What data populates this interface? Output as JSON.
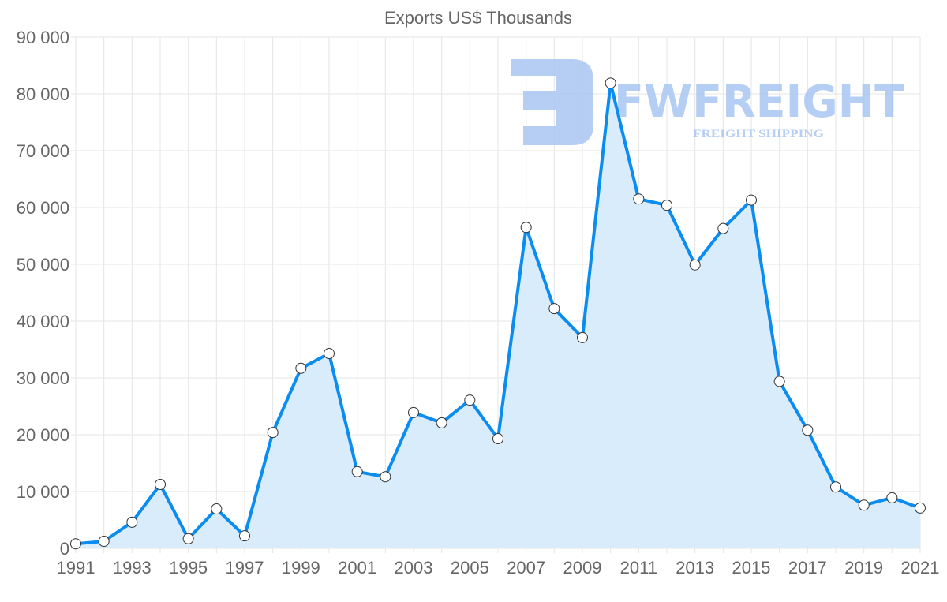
{
  "chart_data": {
    "type": "area",
    "title": "Exports US$ Thousands",
    "xlabel": "",
    "ylabel": "",
    "ylim": [
      0,
      90000
    ],
    "yticks": [
      0,
      10000,
      20000,
      30000,
      40000,
      50000,
      60000,
      70000,
      80000,
      90000
    ],
    "ytick_labels": [
      "0",
      "10 000",
      "20 000",
      "30 000",
      "40 000",
      "50 000",
      "60 000",
      "70 000",
      "80 000",
      "90 000"
    ],
    "xtick_labels": [
      "1991",
      "1993",
      "1995",
      "1997",
      "1999",
      "2001",
      "2003",
      "2005",
      "2007",
      "2009",
      "2011",
      "2013",
      "2015",
      "2017",
      "2019",
      "2021"
    ],
    "grid": true,
    "x": [
      1991,
      1992,
      1993,
      1994,
      1995,
      1996,
      1997,
      1998,
      1999,
      2000,
      2001,
      2002,
      2003,
      2004,
      2005,
      2006,
      2007,
      2008,
      2009,
      2010,
      2011,
      2012,
      2013,
      2014,
      2015,
      2016,
      2017,
      2018,
      2019,
      2020,
      2021
    ],
    "series": [
      {
        "name": "Exports US$ Thousands",
        "values": [
          800,
          1250,
          4600,
          11250,
          1700,
          6950,
          2200,
          20400,
          31700,
          34300,
          13500,
          12600,
          23900,
          22100,
          26100,
          19300,
          56500,
          42200,
          37100,
          81900,
          61500,
          60400,
          49900,
          56300,
          61300,
          29400,
          20800,
          10800,
          7600,
          8900,
          7100
        ],
        "color": "#0a8cf0",
        "fill": "#d9ecfc"
      }
    ]
  },
  "watermark": {
    "brand": "FWFREIGHT",
    "tagline": "FREIGHT SHIPPING",
    "color": "#a9c6f2"
  }
}
